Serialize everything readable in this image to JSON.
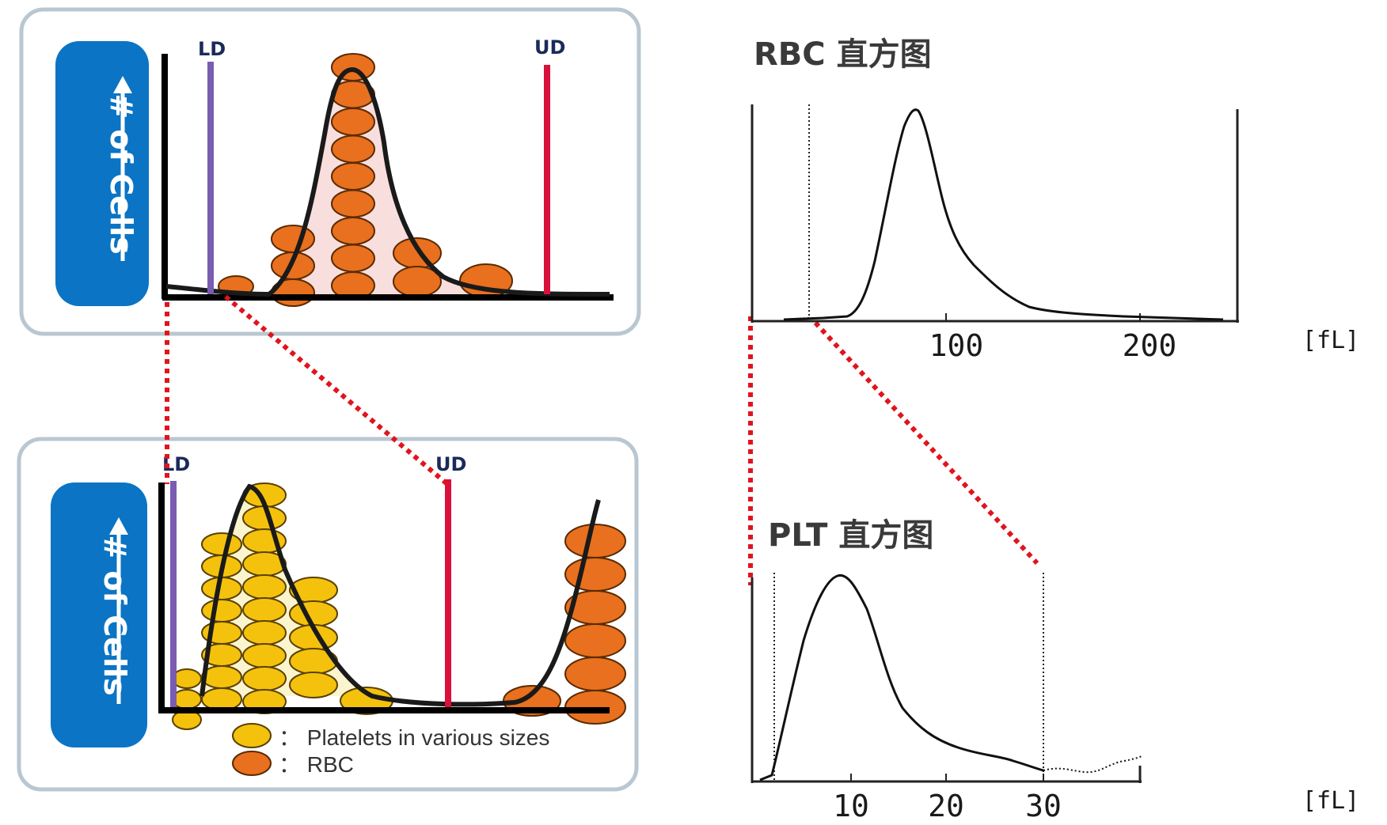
{
  "colors": {
    "panel_border": "#b9c7d2",
    "label_box": "#0b74c4",
    "ld_line": "#7a5cb0",
    "ud_line": "#d9103a",
    "rbc_cell": "#e8701e",
    "platelet_cell": "#f4c20d",
    "rbc_fill": "#f9dede",
    "plt_fill": "#fbf5cf",
    "dotted_connector": "#e0141e"
  },
  "left_top_panel": {
    "y_caption": "# of Cells",
    "ld_label": "LD",
    "ud_label": "UD"
  },
  "left_bottom_panel": {
    "y_caption": "# of Cells",
    "ld_label": "LD",
    "ud_label": "UD",
    "legend": [
      {
        "icon": "platelet-cell",
        "text": "： Platelets in various sizes"
      },
      {
        "icon": "rbc-cell",
        "text": "： RBC"
      }
    ]
  },
  "rbc_histogram": {
    "title": "RBC  直方图",
    "x_ticks": [
      "100",
      "200"
    ],
    "unit": "[fL]"
  },
  "plt_histogram": {
    "title": "PLT  直方图",
    "x_ticks": [
      "10",
      "20",
      "30"
    ],
    "unit": "[fL]"
  }
}
